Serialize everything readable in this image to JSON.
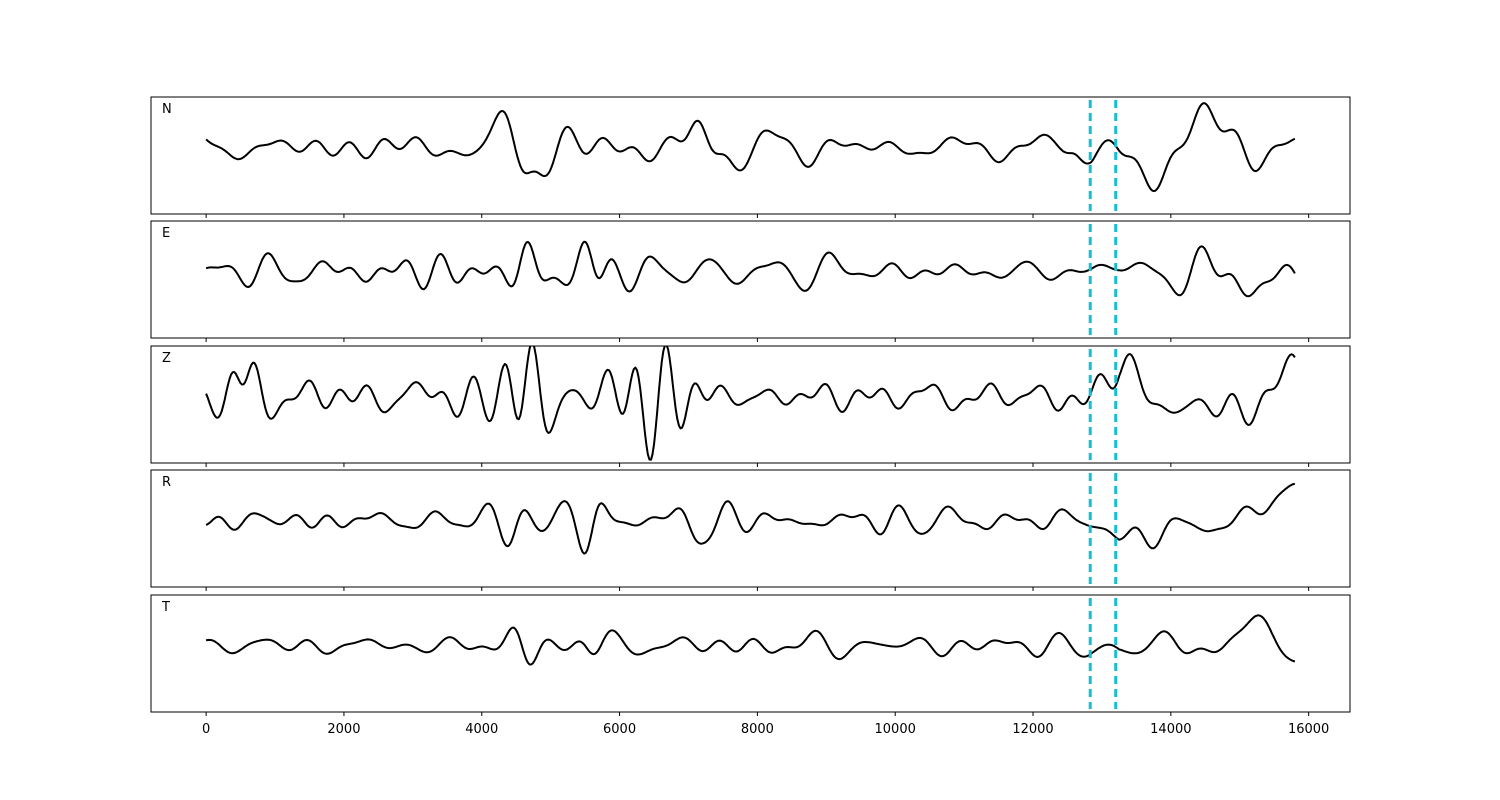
{
  "chart_data": {
    "type": "line",
    "panels": [
      {
        "name": "N",
        "label": "N",
        "amplitude": 1.0,
        "bursts": [
          [
            4600,
            0.9,
            500
          ],
          [
            7200,
            0.8,
            400
          ],
          [
            12600,
            0.6,
            200
          ]
        ],
        "seed": 11
      },
      {
        "name": "E",
        "label": "E",
        "amplitude": 0.85,
        "bursts": [
          [
            4650,
            0.6,
            300
          ],
          [
            5600,
            0.7,
            300
          ],
          [
            8950,
            0.6,
            300
          ]
        ],
        "seed": 23
      },
      {
        "name": "Z",
        "label": "Z",
        "amplitude": 1.15,
        "bursts": [
          [
            550,
            1.1,
            300
          ],
          [
            4700,
            1.5,
            400
          ],
          [
            6500,
            1.3,
            700
          ]
        ],
        "seed": 37
      },
      {
        "name": "R",
        "label": "R",
        "amplitude": 0.8,
        "bursts": [
          [
            4650,
            0.8,
            400
          ],
          [
            5600,
            0.7,
            300
          ],
          [
            7200,
            0.8,
            400
          ]
        ],
        "seed": 51
      },
      {
        "name": "T",
        "label": "T",
        "amplitude": 0.7,
        "bursts": [
          [
            4600,
            0.6,
            300
          ],
          [
            5600,
            0.5,
            300
          ]
        ],
        "seed": 67
      }
    ],
    "x_range": [
      0,
      15800
    ],
    "xlim": [
      -800,
      16600
    ],
    "x_ticks": [
      0,
      2000,
      4000,
      6000,
      8000,
      10000,
      12000,
      14000,
      16000
    ],
    "arrival_markers": [
      12830,
      13200
    ],
    "signal_onset": 13150,
    "colors": {
      "trace": "#000000",
      "marker": "#17becf"
    }
  }
}
